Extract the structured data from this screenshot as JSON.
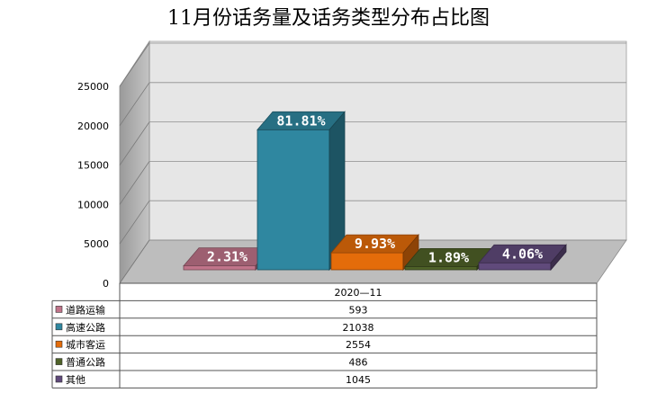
{
  "chart_data": {
    "type": "bar",
    "title": "11月份话务量及话务类型分布占比图",
    "categories": [
      "2020—11"
    ],
    "series": [
      {
        "name": "道路运输",
        "values": [
          593
        ],
        "label": "2.31%",
        "color": "#c0748a"
      },
      {
        "name": "高速公路",
        "values": [
          21038
        ],
        "label": "81.81%",
        "color": "#2f87a0"
      },
      {
        "name": "城市客运",
        "values": [
          2554
        ],
        "label": "9.93%",
        "color": "#e46c0a"
      },
      {
        "name": "普通公路",
        "values": [
          486
        ],
        "label": "1.89%",
        "color": "#4f6228"
      },
      {
        "name": "其他",
        "values": [
          1045
        ],
        "label": "4.06%",
        "color": "#604a7b"
      }
    ],
    "y_ticks": [
      "0",
      "5000",
      "10000",
      "15000",
      "20000",
      "25000"
    ],
    "ylim": [
      0,
      25000
    ],
    "grid": true,
    "legend": "data-table-left"
  }
}
